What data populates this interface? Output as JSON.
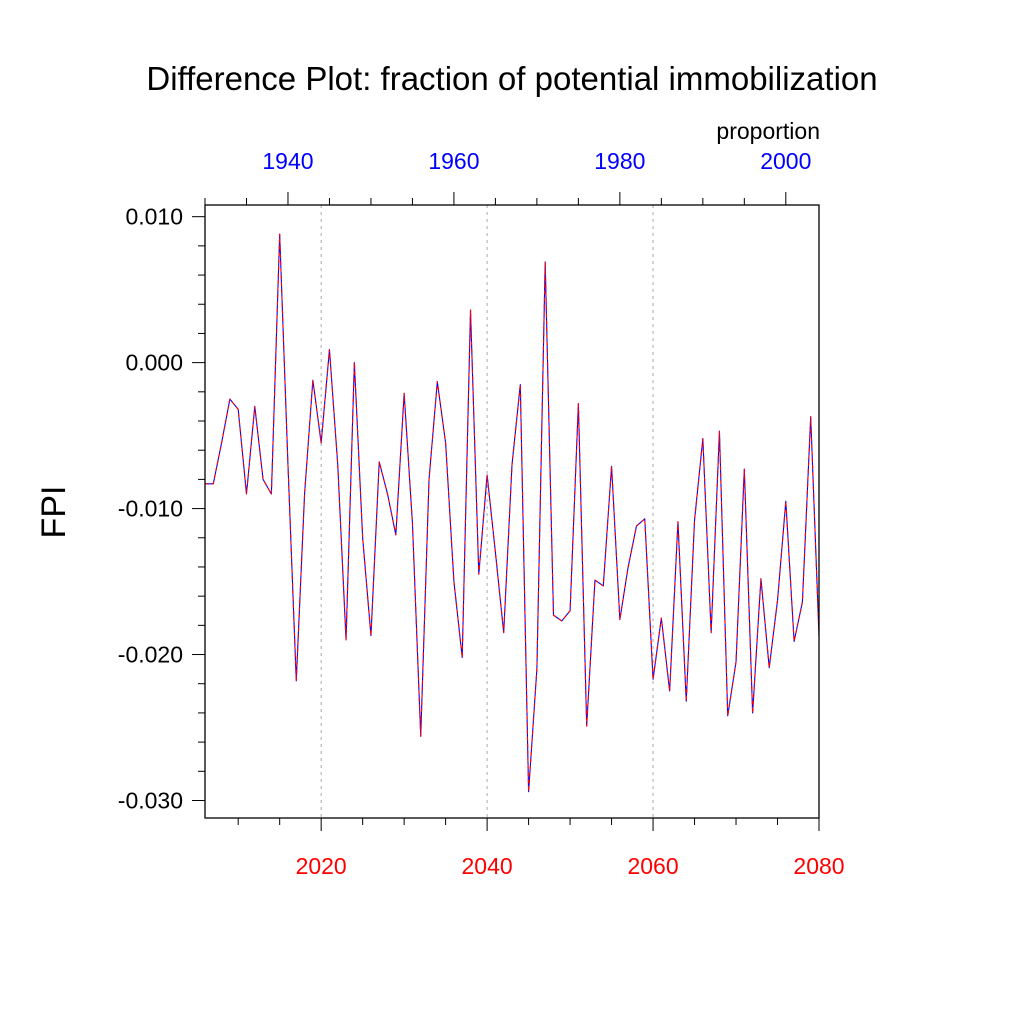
{
  "chart_data": {
    "type": "line",
    "title": "Difference Plot: fraction of potential immobilization",
    "ylabel": "FPI",
    "top_axis_label": "proportion",
    "ylim": [
      -0.0312,
      0.0108
    ],
    "yticks": [
      -0.03,
      -0.02,
      -0.01,
      0.0,
      0.01
    ],
    "ytick_labels": [
      "-0.030",
      "-0.020",
      "-0.010",
      "0.000",
      "0.010"
    ],
    "bottom_axis": {
      "color": "#ff0000",
      "range": [
        2006,
        2080
      ],
      "ticks": [
        2020,
        2040,
        2060,
        2080
      ],
      "tick_labels": [
        "2020",
        "2040",
        "2060",
        "2080"
      ]
    },
    "top_axis": {
      "color": "#0000ff",
      "range": [
        1930,
        2004
      ],
      "ticks": [
        1940,
        1960,
        1980,
        2000
      ],
      "tick_labels": [
        "1940",
        "1960",
        "1980",
        "2000"
      ]
    },
    "gridlines_x": [
      2020,
      2040,
      2060
    ],
    "x": [
      2006,
      2007,
      2008,
      2009,
      2010,
      2011,
      2012,
      2013,
      2014,
      2015,
      2016,
      2017,
      2018,
      2019,
      2020,
      2021,
      2022,
      2023,
      2024,
      2025,
      2026,
      2027,
      2028,
      2029,
      2030,
      2031,
      2032,
      2033,
      2034,
      2035,
      2036,
      2037,
      2038,
      2039,
      2040,
      2041,
      2042,
      2043,
      2044,
      2045,
      2046,
      2047,
      2048,
      2049,
      2050,
      2051,
      2052,
      2053,
      2054,
      2055,
      2056,
      2057,
      2058,
      2059,
      2060,
      2061,
      2062,
      2063,
      2064,
      2065,
      2066,
      2067,
      2068,
      2069,
      2070,
      2071,
      2072,
      2073,
      2074,
      2075,
      2076,
      2077,
      2078,
      2079,
      2080
    ],
    "series": [
      {
        "name": "red",
        "color": "#ff0000",
        "dash": "dashed",
        "values": [
          -0.0083,
          -0.0083,
          -0.0055,
          -0.0025,
          -0.0032,
          -0.009,
          -0.003,
          -0.008,
          -0.009,
          0.0088,
          -0.007,
          -0.0218,
          -0.009,
          -0.0012,
          -0.0055,
          0.0009,
          -0.007,
          -0.019,
          0.0,
          -0.012,
          -0.0187,
          -0.0068,
          -0.009,
          -0.0118,
          -0.0021,
          -0.011,
          -0.0256,
          -0.008,
          -0.0013,
          -0.0055,
          -0.015,
          -0.0202,
          0.0036,
          -0.0145,
          -0.0077,
          -0.013,
          -0.0185,
          -0.007,
          -0.0015,
          -0.0294,
          -0.021,
          0.0069,
          -0.0173,
          -0.0177,
          -0.017,
          -0.0028,
          -0.0249,
          -0.0149,
          -0.0153,
          -0.0071,
          -0.0176,
          -0.014,
          -0.0112,
          -0.0107,
          -0.0217,
          -0.0175,
          -0.0225,
          -0.0109,
          -0.0232,
          -0.0108,
          -0.0052,
          -0.0185,
          -0.0047,
          -0.0242,
          -0.0205,
          -0.0073,
          -0.024,
          -0.0148,
          -0.0209,
          -0.0163,
          -0.0095,
          -0.0191,
          -0.0164,
          -0.0037,
          -0.0187
        ]
      },
      {
        "name": "blue",
        "color": "#0000ff",
        "dash": "solid",
        "values": [
          -0.0083,
          -0.0083,
          -0.0055,
          -0.0025,
          -0.0032,
          -0.009,
          -0.003,
          -0.008,
          -0.009,
          0.0088,
          -0.007,
          -0.0218,
          -0.009,
          -0.0012,
          -0.0055,
          0.0009,
          -0.007,
          -0.019,
          0.0,
          -0.012,
          -0.0187,
          -0.0068,
          -0.009,
          -0.0118,
          -0.0021,
          -0.011,
          -0.0256,
          -0.008,
          -0.0013,
          -0.0055,
          -0.015,
          -0.0202,
          0.0036,
          -0.0145,
          -0.0077,
          -0.013,
          -0.0185,
          -0.007,
          -0.0015,
          -0.0294,
          -0.021,
          0.0069,
          -0.0173,
          -0.0177,
          -0.017,
          -0.0028,
          -0.0249,
          -0.0149,
          -0.0153,
          -0.0071,
          -0.0176,
          -0.014,
          -0.0112,
          -0.0107,
          -0.0217,
          -0.0175,
          -0.0225,
          -0.0109,
          -0.0232,
          -0.0108,
          -0.0052,
          -0.0185,
          -0.0047,
          -0.0242,
          -0.0205,
          -0.0073,
          -0.024,
          -0.0148,
          -0.0209,
          -0.0163,
          -0.0095,
          -0.0191,
          -0.0164,
          -0.0037,
          -0.0187
        ]
      }
    ]
  }
}
